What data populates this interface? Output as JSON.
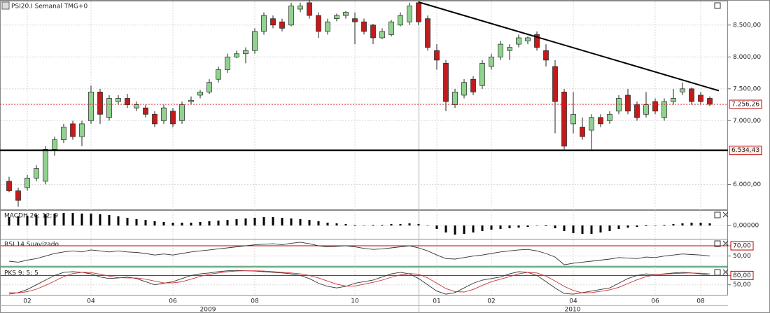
{
  "chart_data": [
    {
      "type": "candlestick",
      "title": "PSI20.I Semanal TMG+0",
      "categories": [
        null,
        null,
        "02",
        null,
        null,
        null,
        null,
        null,
        null,
        "04",
        null,
        null,
        null,
        null,
        null,
        null,
        null,
        null,
        "06",
        null,
        null,
        null,
        null,
        null,
        null,
        null,
        null,
        "08",
        null,
        null,
        null,
        null,
        null,
        null,
        null,
        null,
        null,
        null,
        "10",
        null,
        null,
        null,
        null,
        null,
        null,
        null,
        null,
        "01",
        null,
        null,
        null,
        null,
        null,
        "02",
        null,
        null,
        null,
        null,
        null,
        null,
        null,
        null,
        "04",
        null,
        null,
        null,
        null,
        null,
        null,
        null,
        null,
        "06",
        null,
        null,
        null,
        null,
        "08",
        null
      ],
      "year_labels": [
        "2009",
        "2010"
      ],
      "ohlc": [
        [
          6050,
          6120,
          5880,
          5900
        ],
        [
          5900,
          5950,
          5650,
          5750
        ],
        [
          5950,
          6150,
          5900,
          6100
        ],
        [
          6100,
          6300,
          6050,
          6250
        ],
        [
          6050,
          6600,
          6000,
          6550
        ],
        [
          6550,
          6750,
          6450,
          6700
        ],
        [
          6700,
          6950,
          6650,
          6900
        ],
        [
          6950,
          7000,
          6700,
          6750
        ],
        [
          6750,
          7000,
          6600,
          6950
        ],
        [
          7000,
          7550,
          6950,
          7450
        ],
        [
          7450,
          7500,
          6950,
          7100
        ],
        [
          7050,
          7400,
          7000,
          7350
        ],
        [
          7300,
          7400,
          7250,
          7350
        ],
        [
          7350,
          7420,
          7200,
          7250
        ],
        [
          7200,
          7300,
          7150,
          7250
        ],
        [
          7200,
          7250,
          7050,
          7100
        ],
        [
          7100,
          7150,
          6900,
          6950
        ],
        [
          7000,
          7250,
          6950,
          7200
        ],
        [
          7150,
          7200,
          6900,
          6950
        ],
        [
          7000,
          7300,
          6950,
          7250
        ],
        [
          7300,
          7380,
          7260,
          7320
        ],
        [
          7400,
          7480,
          7350,
          7450
        ],
        [
          7450,
          7650,
          7420,
          7600
        ],
        [
          7650,
          7850,
          7600,
          7800
        ],
        [
          7800,
          8050,
          7750,
          8000
        ],
        [
          8000,
          8100,
          7980,
          8050
        ],
        [
          8050,
          8150,
          7900,
          8100
        ],
        [
          8100,
          8450,
          8050,
          8400
        ],
        [
          8400,
          8700,
          8350,
          8650
        ],
        [
          8600,
          8650,
          8450,
          8500
        ],
        [
          8550,
          8600,
          8400,
          8450
        ],
        [
          8500,
          8850,
          8480,
          8800
        ],
        [
          8750,
          8850,
          8700,
          8800
        ],
        [
          8850,
          8900,
          8600,
          8650
        ],
        [
          8650,
          8700,
          8300,
          8400
        ],
        [
          8400,
          8600,
          8350,
          8550
        ],
        [
          8600,
          8680,
          8560,
          8650
        ],
        [
          8650,
          8720,
          8600,
          8700
        ],
        [
          8600,
          8700,
          8200,
          8550
        ],
        [
          8550,
          8600,
          8350,
          8400
        ],
        [
          8500,
          8520,
          8200,
          8300
        ],
        [
          8300,
          8450,
          8280,
          8400
        ],
        [
          8350,
          8580,
          8320,
          8550
        ],
        [
          8500,
          8700,
          8480,
          8650
        ],
        [
          8550,
          8850,
          8500,
          8800
        ],
        [
          8850,
          8870,
          8500,
          8550
        ],
        [
          8600,
          8650,
          8100,
          8150
        ],
        [
          8100,
          8200,
          7800,
          7950
        ],
        [
          7900,
          7950,
          7150,
          7300
        ],
        [
          7250,
          7500,
          7200,
          7450
        ],
        [
          7400,
          7650,
          7350,
          7600
        ],
        [
          7650,
          7700,
          7400,
          7450
        ],
        [
          7550,
          7950,
          7500,
          7900
        ],
        [
          7850,
          8050,
          7800,
          8000
        ],
        [
          8000,
          8250,
          7950,
          8200
        ],
        [
          8100,
          8200,
          7950,
          8150
        ],
        [
          8200,
          8350,
          8150,
          8300
        ],
        [
          8250,
          8320,
          8200,
          8300
        ],
        [
          8350,
          8400,
          8100,
          8150
        ],
        [
          8100,
          8200,
          7850,
          7950
        ],
        [
          7850,
          7950,
          6800,
          7300
        ],
        [
          7450,
          7500,
          6550,
          6600
        ],
        [
          6950,
          7450,
          6800,
          7100
        ],
        [
          6900,
          7050,
          6700,
          6750
        ],
        [
          6850,
          7100,
          6550,
          7050
        ],
        [
          7050,
          7100,
          6900,
          6950
        ],
        [
          7000,
          7150,
          6950,
          7100
        ],
        [
          7150,
          7400,
          7100,
          7350
        ],
        [
          7400,
          7500,
          7100,
          7150
        ],
        [
          7250,
          7300,
          7000,
          7050
        ],
        [
          7100,
          7450,
          7050,
          7250
        ],
        [
          7300,
          7350,
          7100,
          7150
        ],
        [
          7050,
          7350,
          7000,
          7300
        ],
        [
          7300,
          7500,
          7250,
          7350
        ],
        [
          7450,
          7600,
          7400,
          7500
        ],
        [
          7500,
          7520,
          7250,
          7300
        ],
        [
          7400,
          7450,
          7250,
          7300
        ],
        [
          7350,
          7380,
          7230,
          7256.26
        ]
      ],
      "up_color": "#8fd38f",
      "down_color": "#c31b1b",
      "ylim": [
        5620,
        8860
      ],
      "yticks": [
        {
          "value": 6000,
          "label": "6.000,00"
        },
        {
          "value": 7000,
          "label": "7.000,00"
        },
        {
          "value": 7500,
          "label": "7.500,00"
        },
        {
          "value": 8000,
          "label": "8.000,00"
        },
        {
          "value": 8500,
          "label": "8.500,00"
        }
      ],
      "last_price": {
        "value": 7256.26,
        "label": "7.256,26"
      },
      "support": {
        "value": 6534.43,
        "label": "6.534,43"
      },
      "trendline": {
        "start": [
          45,
          8860
        ],
        "end": [
          78,
          7470
        ]
      },
      "grid": true
    },
    {
      "type": "bar",
      "title": "MACDH 26; 12; 9",
      "color": "#000000",
      "values": [
        12,
        13,
        14,
        15,
        16,
        17,
        18,
        18,
        17,
        17,
        16,
        15,
        13,
        11,
        9,
        8,
        6,
        5,
        4,
        4,
        4,
        5,
        6,
        7,
        8,
        9,
        10,
        11,
        12,
        12,
        11,
        10,
        9,
        8,
        6,
        4,
        3,
        2,
        1,
        0,
        1,
        1,
        2,
        2,
        3,
        2,
        0,
        -5,
        -10,
        -13,
        -12,
        -10,
        -8,
        -6,
        -5,
        -4,
        -3,
        -2,
        0,
        -1,
        -4,
        -8,
        -11,
        -12,
        -12,
        -10,
        -8,
        -5,
        -3,
        -2,
        -1,
        0,
        1,
        2,
        3,
        4,
        4,
        3
      ],
      "ylim": [
        -18,
        20
      ],
      "yticks": [
        {
          "value": 0,
          "label": "0,00000"
        }
      ],
      "grid": true
    },
    {
      "type": "line",
      "title": "RSI 14 Suavizado",
      "series": [
        {
          "color": "#333333",
          "values": [
            40,
            38,
            42,
            45,
            50,
            55,
            58,
            60,
            58,
            62,
            60,
            58,
            60,
            58,
            57,
            55,
            52,
            54,
            52,
            55,
            58,
            60,
            62,
            64,
            66,
            68,
            70,
            72,
            73,
            74,
            72,
            75,
            77,
            74,
            70,
            68,
            69,
            70,
            68,
            65,
            63,
            64,
            66,
            68,
            70,
            66,
            60,
            52,
            45,
            44,
            47,
            50,
            52,
            55,
            58,
            60,
            62,
            63,
            60,
            55,
            48,
            33,
            36,
            38,
            40,
            42,
            44,
            47,
            46,
            45,
            48,
            47,
            50,
            52,
            54,
            53,
            52,
            50
          ]
        }
      ],
      "levels": [
        {
          "value": 70,
          "color": "#c00000"
        },
        {
          "value": 30,
          "color": "#2e8b57"
        }
      ],
      "ylim": [
        29,
        81
      ],
      "yticks": [
        {
          "value": 50,
          "label": "50,00"
        },
        {
          "value": 70,
          "label": "70,00",
          "boxed": true
        }
      ],
      "grid": true
    },
    {
      "type": "line",
      "title": "PKS 9; 5; 5",
      "series": [
        {
          "color": "#333333",
          "values": [
            20,
            25,
            35,
            50,
            65,
            80,
            90,
            92,
            90,
            85,
            75,
            70,
            72,
            75,
            70,
            60,
            50,
            55,
            60,
            70,
            80,
            85,
            88,
            92,
            95,
            96,
            95,
            94,
            92,
            90,
            88,
            85,
            80,
            70,
            55,
            45,
            40,
            45,
            55,
            60,
            65,
            75,
            85,
            90,
            85,
            70,
            50,
            30,
            20,
            25,
            40,
            55,
            65,
            70,
            75,
            85,
            92,
            90,
            80,
            60,
            40,
            22,
            20,
            25,
            30,
            35,
            40,
            55,
            70,
            80,
            85,
            82,
            85,
            88,
            90,
            88,
            85,
            80
          ]
        },
        {
          "color": "#d03030",
          "values": [
            25,
            24,
            28,
            36,
            48,
            62,
            76,
            86,
            90,
            89,
            84,
            78,
            73,
            72,
            72,
            68,
            62,
            56,
            56,
            60,
            68,
            77,
            84,
            88,
            92,
            94,
            95,
            95,
            94,
            92,
            90,
            88,
            85,
            80,
            72,
            62,
            52,
            46,
            46,
            52,
            58,
            65,
            74,
            82,
            86,
            84,
            72,
            55,
            38,
            28,
            27,
            35,
            48,
            60,
            68,
            76,
            85,
            90,
            88,
            78,
            62,
            45,
            32,
            24,
            25,
            29,
            34,
            42,
            54,
            66,
            76,
            82,
            84,
            86,
            87,
            88,
            87,
            85
          ]
        }
      ],
      "levels": [
        {
          "value": 80,
          "color": "#c00000"
        }
      ],
      "ylim": [
        18,
        101
      ],
      "yticks": [
        {
          "value": 50,
          "label": "50,00"
        },
        {
          "value": 80,
          "label": "80,00",
          "boxed": true
        }
      ],
      "grid": true
    }
  ]
}
